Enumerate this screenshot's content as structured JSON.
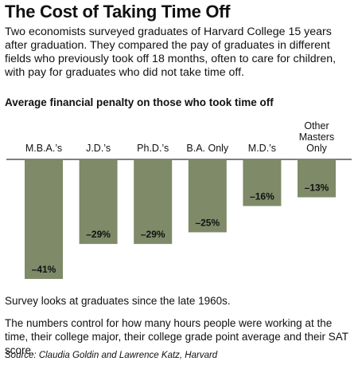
{
  "header": {
    "title": "The Cost of Taking Time Off",
    "intro": "Two economists surveyed graduates of Harvard College 15 years after graduation. They compared the pay of graduates in different fields who previously took off 18 months, often to care for children, with pay for graduates who did not take time off."
  },
  "footer": {
    "note1": "Survey looks at graduates since the late 1960s.",
    "note2": "The numbers control for how many hours people were working at the time, their college major, their college grade point average and their SAT score.",
    "source": "Source: Claudia Goldin and Lawrence Katz, Harvard"
  },
  "colors": {
    "bar": "#7e8a68",
    "baseline": "#000000",
    "text": "#111111"
  },
  "chart_data": {
    "type": "bar",
    "title": "Average financial penalty on those who took time off",
    "categories": [
      "M.B.A.'s",
      "J.D.'s",
      "Ph.D.'s",
      "B.A. Only",
      "M.D.'s",
      "Other Masters Only"
    ],
    "category_label_lines": [
      [
        "M.B.A.’s"
      ],
      [
        "J.D.’s"
      ],
      [
        "Ph.D.’s"
      ],
      [
        "B.A. Only"
      ],
      [
        "M.D.’s"
      ],
      [
        "Other",
        "Masters",
        "Only"
      ]
    ],
    "values": [
      -41,
      -29,
      -29,
      -25,
      -16,
      -13
    ],
    "value_labels": [
      "–41%",
      "–29%",
      "–29%",
      "–25%",
      "–16%",
      "–13%"
    ],
    "value_suffix": "%",
    "ylim": [
      -41,
      0
    ],
    "xlabel": "",
    "ylabel": "",
    "grid": false
  }
}
